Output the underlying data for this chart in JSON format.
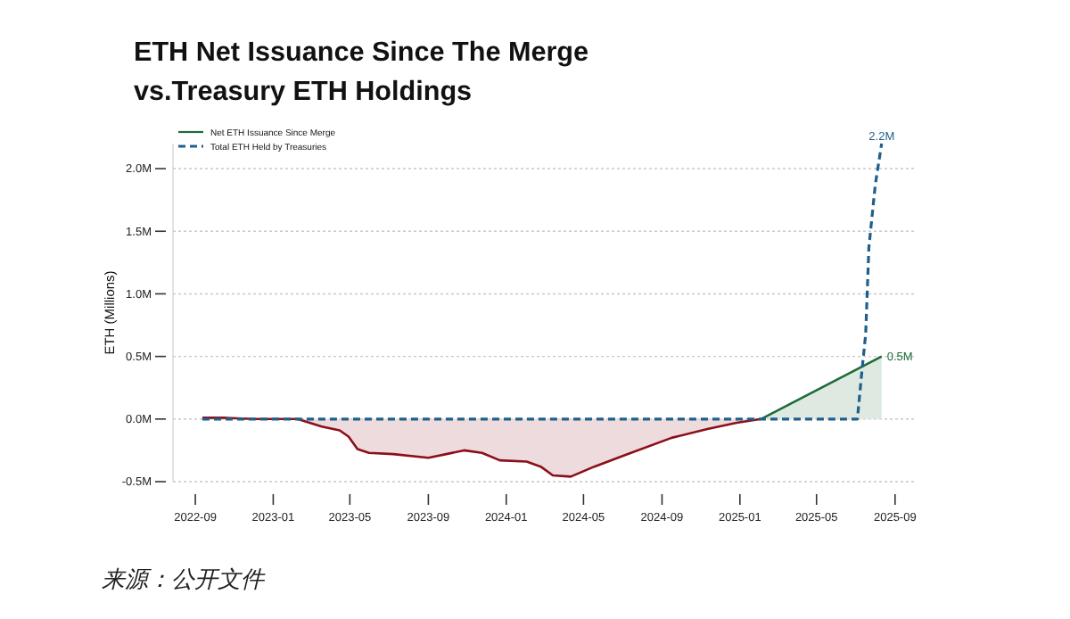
{
  "chart_data": {
    "type": "line",
    "title": "ETH Net Issuance Since The Merge\nvs.Treasury ETH Holdings",
    "ylabel": "ETH (Millions)",
    "xlim": [
      "2022-07-28",
      "2025-10-02"
    ],
    "xticks": [
      "2022-09",
      "2023-01",
      "2023-05",
      "2023-09",
      "2024-01",
      "2024-05",
      "2024-09",
      "2025-01",
      "2025-05",
      "2025-09"
    ],
    "yticks": [
      {
        "value": -0.5,
        "label": "-0.5M"
      },
      {
        "value": 0,
        "label": "0.0M"
      },
      {
        "value": 0.5,
        "label": "0.5M"
      },
      {
        "value": 1,
        "label": "1.0M"
      },
      {
        "value": 1.5,
        "label": "1.5M"
      },
      {
        "value": 2,
        "label": "2.0M"
      }
    ],
    "ylim": [
      -0.5,
      2.2
    ],
    "grid": "y",
    "legend": "top left",
    "series": [
      {
        "type": "area",
        "color": "#8b0f1a",
        "x": [
          "2022-09-12",
          "2022-10-15",
          "2022-12-01",
          "2023-02-08",
          "2023-03-18",
          "2023-04-15",
          "2023-04-29",
          "2023-05-13",
          "2023-05-31",
          "2023-07-08",
          "2023-09-01",
          "2023-09-29",
          "2023-10-27",
          "2023-11-24",
          "2023-12-22",
          "2024-02-02",
          "2024-02-24",
          "2024-03-14",
          "2024-04-11",
          "2024-05-18",
          "2024-07-04",
          "2024-09-16",
          "2024-11-11",
          "2024-12-27",
          "2025-02-03"
        ],
        "values": [
          0.01,
          0.01,
          0.0,
          0.0,
          -0.06,
          -0.09,
          -0.14,
          -0.24,
          -0.27,
          -0.28,
          -0.31,
          -0.28,
          -0.25,
          -0.27,
          -0.33,
          -0.34,
          -0.38,
          -0.45,
          -0.46,
          -0.38,
          -0.29,
          -0.15,
          -0.08,
          -0.03,
          0.0
        ]
      },
      {
        "type": "area",
        "name": "Net ETH Issuance Since Merge",
        "color": "#1e6b3a",
        "x": [
          "2025-02-03",
          "2025-08-11"
        ],
        "values": [
          0.0,
          0.5
        ],
        "value_labels": [
          null,
          "0.5M"
        ]
      },
      {
        "type": "line",
        "name": "Total ETH Held by Treasuries",
        "color": "#1f5f8b",
        "line_style": "dashed",
        "x": [
          "2022-09-12",
          "2025-07-04",
          "2025-07-11",
          "2025-07-17",
          "2025-07-22",
          "2025-08-01",
          "2025-08-11"
        ],
        "values": [
          0.0,
          0.0,
          0.38,
          0.68,
          1.37,
          1.87,
          2.2
        ],
        "value_labels": [
          null,
          null,
          null,
          null,
          null,
          null,
          "2.2M"
        ]
      }
    ],
    "annotations": [
      "来源：公开文件"
    ]
  }
}
